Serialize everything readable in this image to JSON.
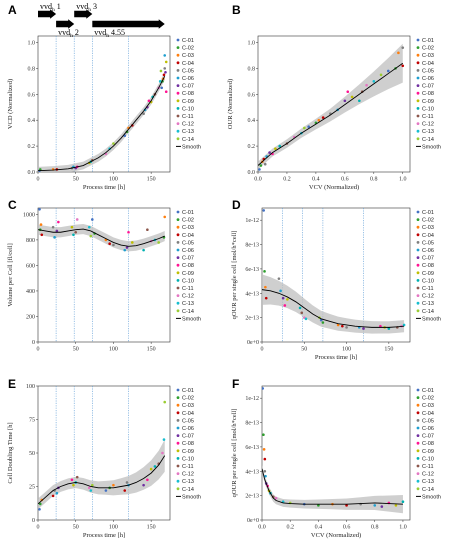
{
  "legend": {
    "series": [
      "C-01",
      "C-02",
      "C-03",
      "C-04",
      "C-05",
      "C-06",
      "C-07",
      "C-08",
      "C-09",
      "C-10",
      "C-11",
      "C-12",
      "C-13",
      "C-14"
    ],
    "colors": [
      "#4472c4",
      "#2e9e2e",
      "#ff7f0e",
      "#c00000",
      "#7f7f7f",
      "#1f9fcf",
      "#7030a0",
      "#ff1493",
      "#bfbf00",
      "#00b0b0",
      "#8c564b",
      "#e377c2",
      "#17becf",
      "#9acd32"
    ],
    "smooth_label": "Smooth",
    "smooth_color": "#000000",
    "band_color": "#bfbfbf"
  },
  "annotation": {
    "arrows": [
      {
        "main": "vvd",
        "sub": "h",
        "suffix": " 1",
        "x_start": 0,
        "x_end": 24,
        "row": 0
      },
      {
        "main": "vvd",
        "sub": "h",
        "suffix": " 2",
        "x_start": 24,
        "x_end": 48,
        "row": 1
      },
      {
        "main": "vvd",
        "sub": "h",
        "suffix": " 3",
        "x_start": 48,
        "x_end": 72,
        "row": 0
      },
      {
        "main": "vvd",
        "sub": "h",
        "suffix": " 4.55",
        "x_start": 72,
        "x_end": 168,
        "row": 1
      }
    ]
  },
  "chart_data": [
    {
      "panel": "A",
      "type": "scatter",
      "xlabel": "Process time [h]",
      "ylabel": "VCD (Normalized)",
      "xlim": [
        0,
        175
      ],
      "ylim": [
        0,
        1.05
      ],
      "xticks": [
        0,
        50,
        100,
        150
      ],
      "yticks": [
        0,
        0.2,
        0.4,
        0.6,
        0.8,
        1.0
      ],
      "ytick_labels": [
        "0.0",
        "0.2",
        "0.4",
        "0.6",
        "0.8",
        "1.0"
      ],
      "vlines": [
        24,
        48,
        72,
        120
      ],
      "smooth": {
        "x": [
          0,
          20,
          40,
          60,
          70,
          80,
          90,
          100,
          110,
          120,
          130,
          140,
          150,
          160,
          168
        ],
        "y": [
          0.01,
          0.015,
          0.025,
          0.05,
          0.08,
          0.11,
          0.15,
          0.2,
          0.26,
          0.33,
          0.4,
          0.47,
          0.55,
          0.65,
          0.74
        ]
      },
      "band": 0.03,
      "points": [
        [
          2,
          0.01
        ],
        [
          3,
          0.02
        ],
        [
          20,
          0.02
        ],
        [
          25,
          0.02
        ],
        [
          45,
          0.03
        ],
        [
          47,
          0.04
        ],
        [
          50,
          0.03
        ],
        [
          52,
          0.04
        ],
        [
          68,
          0.07
        ],
        [
          70,
          0.08
        ],
        [
          72,
          0.09
        ],
        [
          90,
          0.14
        ],
        [
          95,
          0.18
        ],
        [
          100,
          0.22
        ],
        [
          115,
          0.28
        ],
        [
          118,
          0.31
        ],
        [
          120,
          0.34
        ],
        [
          125,
          0.36
        ],
        [
          140,
          0.45
        ],
        [
          142,
          0.48
        ],
        [
          145,
          0.5
        ],
        [
          147,
          0.55
        ],
        [
          150,
          0.54
        ],
        [
          152,
          0.58
        ],
        [
          155,
          0.6
        ],
        [
          160,
          0.65
        ],
        [
          162,
          0.7
        ],
        [
          163,
          0.78
        ],
        [
          164,
          0.65
        ],
        [
          165,
          0.7
        ],
        [
          166,
          0.72
        ],
        [
          167,
          0.75
        ],
        [
          168,
          0.8
        ],
        [
          168,
          0.9
        ],
        [
          169,
          0.77
        ],
        [
          170,
          0.62
        ],
        [
          170,
          0.85
        ]
      ]
    },
    {
      "panel": "B",
      "type": "scatter",
      "xlabel": "VCV (Normalized)",
      "ylabel": "OUR (Normalized)",
      "xlim": [
        0,
        1.05
      ],
      "ylim": [
        0,
        1.05
      ],
      "xticks": [
        0,
        0.2,
        0.4,
        0.6,
        0.8,
        1.0
      ],
      "yticks": [
        0,
        0.2,
        0.4,
        0.6,
        0.8,
        1.0
      ],
      "xtick_labels": [
        "0.0",
        "0.2",
        "0.4",
        "0.6",
        "0.8",
        "1.0"
      ],
      "ytick_labels": [
        "0.0",
        "0.2",
        "0.4",
        "0.6",
        "0.8",
        "1.0"
      ],
      "vlines": [],
      "smooth": {
        "x": [
          0,
          0.05,
          0.1,
          0.2,
          0.3,
          0.4,
          0.5,
          0.6,
          0.7,
          0.8,
          0.9,
          1.0
        ],
        "y": [
          0.05,
          0.1,
          0.15,
          0.22,
          0.3,
          0.37,
          0.44,
          0.52,
          0.6,
          0.68,
          0.76,
          0.84
        ]
      },
      "band": 0.03,
      "band_grow": 5,
      "points": [
        [
          0.01,
          0.02
        ],
        [
          0.02,
          0.05
        ],
        [
          0.03,
          0.08
        ],
        [
          0.04,
          0.1
        ],
        [
          0.05,
          0.06
        ],
        [
          0.06,
          0.12
        ],
        [
          0.08,
          0.15
        ],
        [
          0.1,
          0.14
        ],
        [
          0.12,
          0.18
        ],
        [
          0.15,
          0.2
        ],
        [
          0.2,
          0.22
        ],
        [
          0.25,
          0.27
        ],
        [
          0.3,
          0.3
        ],
        [
          0.32,
          0.34
        ],
        [
          0.35,
          0.35
        ],
        [
          0.4,
          0.38
        ],
        [
          0.42,
          0.4
        ],
        [
          0.45,
          0.42
        ],
        [
          0.5,
          0.45
        ],
        [
          0.55,
          0.48
        ],
        [
          0.6,
          0.55
        ],
        [
          0.62,
          0.62
        ],
        [
          0.65,
          0.58
        ],
        [
          0.7,
          0.55
        ],
        [
          0.72,
          0.62
        ],
        [
          0.75,
          0.67
        ],
        [
          0.8,
          0.7
        ],
        [
          0.85,
          0.75
        ],
        [
          0.9,
          0.78
        ],
        [
          0.95,
          0.8
        ],
        [
          0.97,
          0.92
        ],
        [
          1.0,
          0.82
        ],
        [
          1.0,
          0.96
        ]
      ]
    },
    {
      "panel": "C",
      "type": "scatter",
      "xlabel": "",
      "ylabel": "Volume per Cell [fl/cell]",
      "xlim": [
        0,
        175
      ],
      "ylim": [
        0,
        1050
      ],
      "xticks": [
        0,
        50,
        100,
        150
      ],
      "yticks": [
        0,
        200,
        400,
        600,
        800,
        1000
      ],
      "vlines": [
        24,
        48,
        72,
        120
      ],
      "smooth": {
        "x": [
          0,
          10,
          20,
          30,
          40,
          50,
          60,
          70,
          80,
          90,
          100,
          110,
          120,
          130,
          140,
          150,
          160,
          168
        ],
        "y": [
          880,
          870,
          860,
          860,
          870,
          880,
          885,
          870,
          840,
          810,
          780,
          760,
          750,
          755,
          770,
          790,
          810,
          830
        ]
      },
      "band": 40,
      "points": [
        [
          2,
          1040
        ],
        [
          3,
          880
        ],
        [
          4,
          920
        ],
        [
          5,
          840
        ],
        [
          20,
          900
        ],
        [
          22,
          820
        ],
        [
          25,
          870
        ],
        [
          27,
          940
        ],
        [
          45,
          900
        ],
        [
          47,
          840
        ],
        [
          50,
          860
        ],
        [
          52,
          960
        ],
        [
          68,
          900
        ],
        [
          70,
          830
        ],
        [
          72,
          960
        ],
        [
          75,
          850
        ],
        [
          90,
          800
        ],
        [
          95,
          770
        ],
        [
          100,
          760
        ],
        [
          115,
          720
        ],
        [
          118,
          740
        ],
        [
          120,
          860
        ],
        [
          125,
          780
        ],
        [
          140,
          720
        ],
        [
          145,
          880
        ],
        [
          150,
          790
        ],
        [
          155,
          800
        ],
        [
          160,
          780
        ],
        [
          165,
          1060
        ],
        [
          167,
          820
        ],
        [
          168,
          980
        ]
      ]
    },
    {
      "panel": "D",
      "type": "scatter",
      "xlabel": "Process time [h]",
      "ylabel": "qOUR per single cell [mol/h*cell]",
      "xlim": [
        0,
        175
      ],
      "ylim": [
        0,
        1.1e-12
      ],
      "xticks": [
        0,
        50,
        100,
        150
      ],
      "yticks": [
        0,
        2e-13,
        4e-13,
        6e-13,
        8e-13,
        1e-12
      ],
      "ytick_labels": [
        "0e+0",
        "2e-13",
        "4e-13",
        "6e-13",
        "8e-13",
        "1e-12"
      ],
      "vlines": [
        24,
        48,
        72,
        120
      ],
      "smooth": {
        "x": [
          0,
          10,
          20,
          30,
          40,
          50,
          60,
          70,
          80,
          90,
          100,
          110,
          120,
          130,
          140,
          150,
          160,
          168
        ],
        "y": [
          4.3e-13,
          4.2e-13,
          4e-13,
          3.7e-13,
          3.3e-13,
          2.8e-13,
          2.3e-13,
          1.9e-13,
          1.7e-13,
          1.5e-13,
          1.4e-13,
          1.3e-13,
          1.25e-13,
          1.2e-13,
          1.2e-13,
          1.2e-13,
          1.25e-13,
          1.3e-13
        ]
      },
      "band": 5e-14,
      "band_shrink": 1,
      "points": [
        [
          2,
          1.08e-12
        ],
        [
          3,
          5.8e-13
        ],
        [
          4,
          4.5e-13
        ],
        [
          5,
          3.6e-13
        ],
        [
          20,
          5.2e-13
        ],
        [
          22,
          4.2e-13
        ],
        [
          25,
          3.6e-13
        ],
        [
          27,
          3e-13
        ],
        [
          30,
          3.5e-13
        ],
        [
          45,
          2.8e-13
        ],
        [
          47,
          2.4e-13
        ],
        [
          50,
          2e-13
        ],
        [
          52,
          1.9e-13
        ],
        [
          68,
          2e-13
        ],
        [
          70,
          1.8e-13
        ],
        [
          72,
          1.6e-13
        ],
        [
          90,
          1.4e-13
        ],
        [
          95,
          1.3e-13
        ],
        [
          100,
          1.2e-13
        ],
        [
          115,
          1.2e-13
        ],
        [
          120,
          1.1e-13
        ],
        [
          140,
          1.3e-13
        ],
        [
          145,
          1.2e-13
        ],
        [
          150,
          1.1e-13
        ],
        [
          160,
          1.2e-13
        ],
        [
          165,
          1.3e-13
        ],
        [
          168,
          1.4e-13
        ]
      ]
    },
    {
      "panel": "E",
      "type": "scatter",
      "xlabel": "Process time [h]",
      "ylabel": "Cell Doubling Time [h]",
      "xlim": [
        0,
        175
      ],
      "ylim": [
        0,
        100
      ],
      "xticks": [
        0,
        50,
        100,
        150
      ],
      "yticks": [
        0,
        25,
        50,
        75,
        100
      ],
      "vlines": [
        24,
        48,
        72,
        120
      ],
      "smooth": {
        "x": [
          0,
          10,
          20,
          30,
          40,
          50,
          60,
          70,
          80,
          90,
          100,
          110,
          120,
          130,
          140,
          150,
          160,
          168
        ],
        "y": [
          12,
          17,
          22,
          25,
          27,
          28,
          27,
          25,
          24,
          24,
          24,
          25,
          26,
          28,
          31,
          35,
          41,
          48
        ]
      },
      "band": 4,
      "band_grow": 3,
      "points": [
        [
          2,
          8
        ],
        [
          3,
          12
        ],
        [
          5,
          15
        ],
        [
          20,
          18
        ],
        [
          22,
          22
        ],
        [
          25,
          20
        ],
        [
          27,
          24
        ],
        [
          45,
          30
        ],
        [
          47,
          26
        ],
        [
          50,
          28
        ],
        [
          52,
          32
        ],
        [
          68,
          24
        ],
        [
          70,
          22
        ],
        [
          72,
          26
        ],
        [
          90,
          22
        ],
        [
          95,
          24
        ],
        [
          100,
          26
        ],
        [
          115,
          22
        ],
        [
          118,
          28
        ],
        [
          120,
          26
        ],
        [
          140,
          26
        ],
        [
          145,
          30
        ],
        [
          150,
          38
        ],
        [
          155,
          40
        ],
        [
          160,
          42
        ],
        [
          165,
          50
        ],
        [
          167,
          60
        ],
        [
          168,
          88
        ]
      ]
    },
    {
      "panel": "F",
      "type": "scatter",
      "xlabel": "VCV (Normalized)",
      "ylabel": "qOUR per single cell [mol/h*cell]",
      "xlim": [
        0,
        1.05
      ],
      "ylim": [
        0,
        1.1e-12
      ],
      "xticks": [
        0,
        0.2,
        0.4,
        0.6,
        0.8,
        1.0
      ],
      "yticks": [
        0,
        2e-13,
        4e-13,
        6e-13,
        8e-13,
        1e-12
      ],
      "xtick_labels": [
        "0.0",
        "0.2",
        "0.4",
        "0.6",
        "0.8",
        "1.0"
      ],
      "ytick_labels": [
        "0e+0",
        "2e-13",
        "4e-13",
        "6e-13",
        "8e-13",
        "1e-12"
      ],
      "vlines": [],
      "smooth": {
        "x": [
          0,
          0.02,
          0.05,
          0.08,
          0.1,
          0.15,
          0.2,
          0.3,
          0.4,
          0.5,
          0.6,
          0.7,
          0.8,
          0.9,
          1.0
        ],
        "y": [
          4.2e-13,
          3.3e-13,
          2.4e-13,
          1.8e-13,
          1.6e-13,
          1.4e-13,
          1.35e-13,
          1.3e-13,
          1.3e-13,
          1.3e-13,
          1.3e-13,
          1.35e-13,
          1.4e-13,
          1.35e-13,
          1.3e-13
        ]
      },
      "band": 3e-14,
      "band_grow": 2.5,
      "points": [
        [
          0.005,
          1.08e-12
        ],
        [
          0.01,
          7e-13
        ],
        [
          0.015,
          5.8e-13
        ],
        [
          0.02,
          5e-13
        ],
        [
          0.02,
          4e-13
        ],
        [
          0.025,
          3.6e-13
        ],
        [
          0.03,
          3e-13
        ],
        [
          0.04,
          2.8e-13
        ],
        [
          0.05,
          2.4e-13
        ],
        [
          0.06,
          2.2e-13
        ],
        [
          0.08,
          1.9e-13
        ],
        [
          0.1,
          1.8e-13
        ],
        [
          0.15,
          1.5e-13
        ],
        [
          0.2,
          1.4e-13
        ],
        [
          0.3,
          1.3e-13
        ],
        [
          0.4,
          1.2e-13
        ],
        [
          0.5,
          1.3e-13
        ],
        [
          0.6,
          1.2e-13
        ],
        [
          0.7,
          1.3e-13
        ],
        [
          0.8,
          1.2e-13
        ],
        [
          0.85,
          1.1e-13
        ],
        [
          0.9,
          1.4e-13
        ],
        [
          0.95,
          1.2e-13
        ],
        [
          1.0,
          1.5e-13
        ]
      ]
    }
  ]
}
